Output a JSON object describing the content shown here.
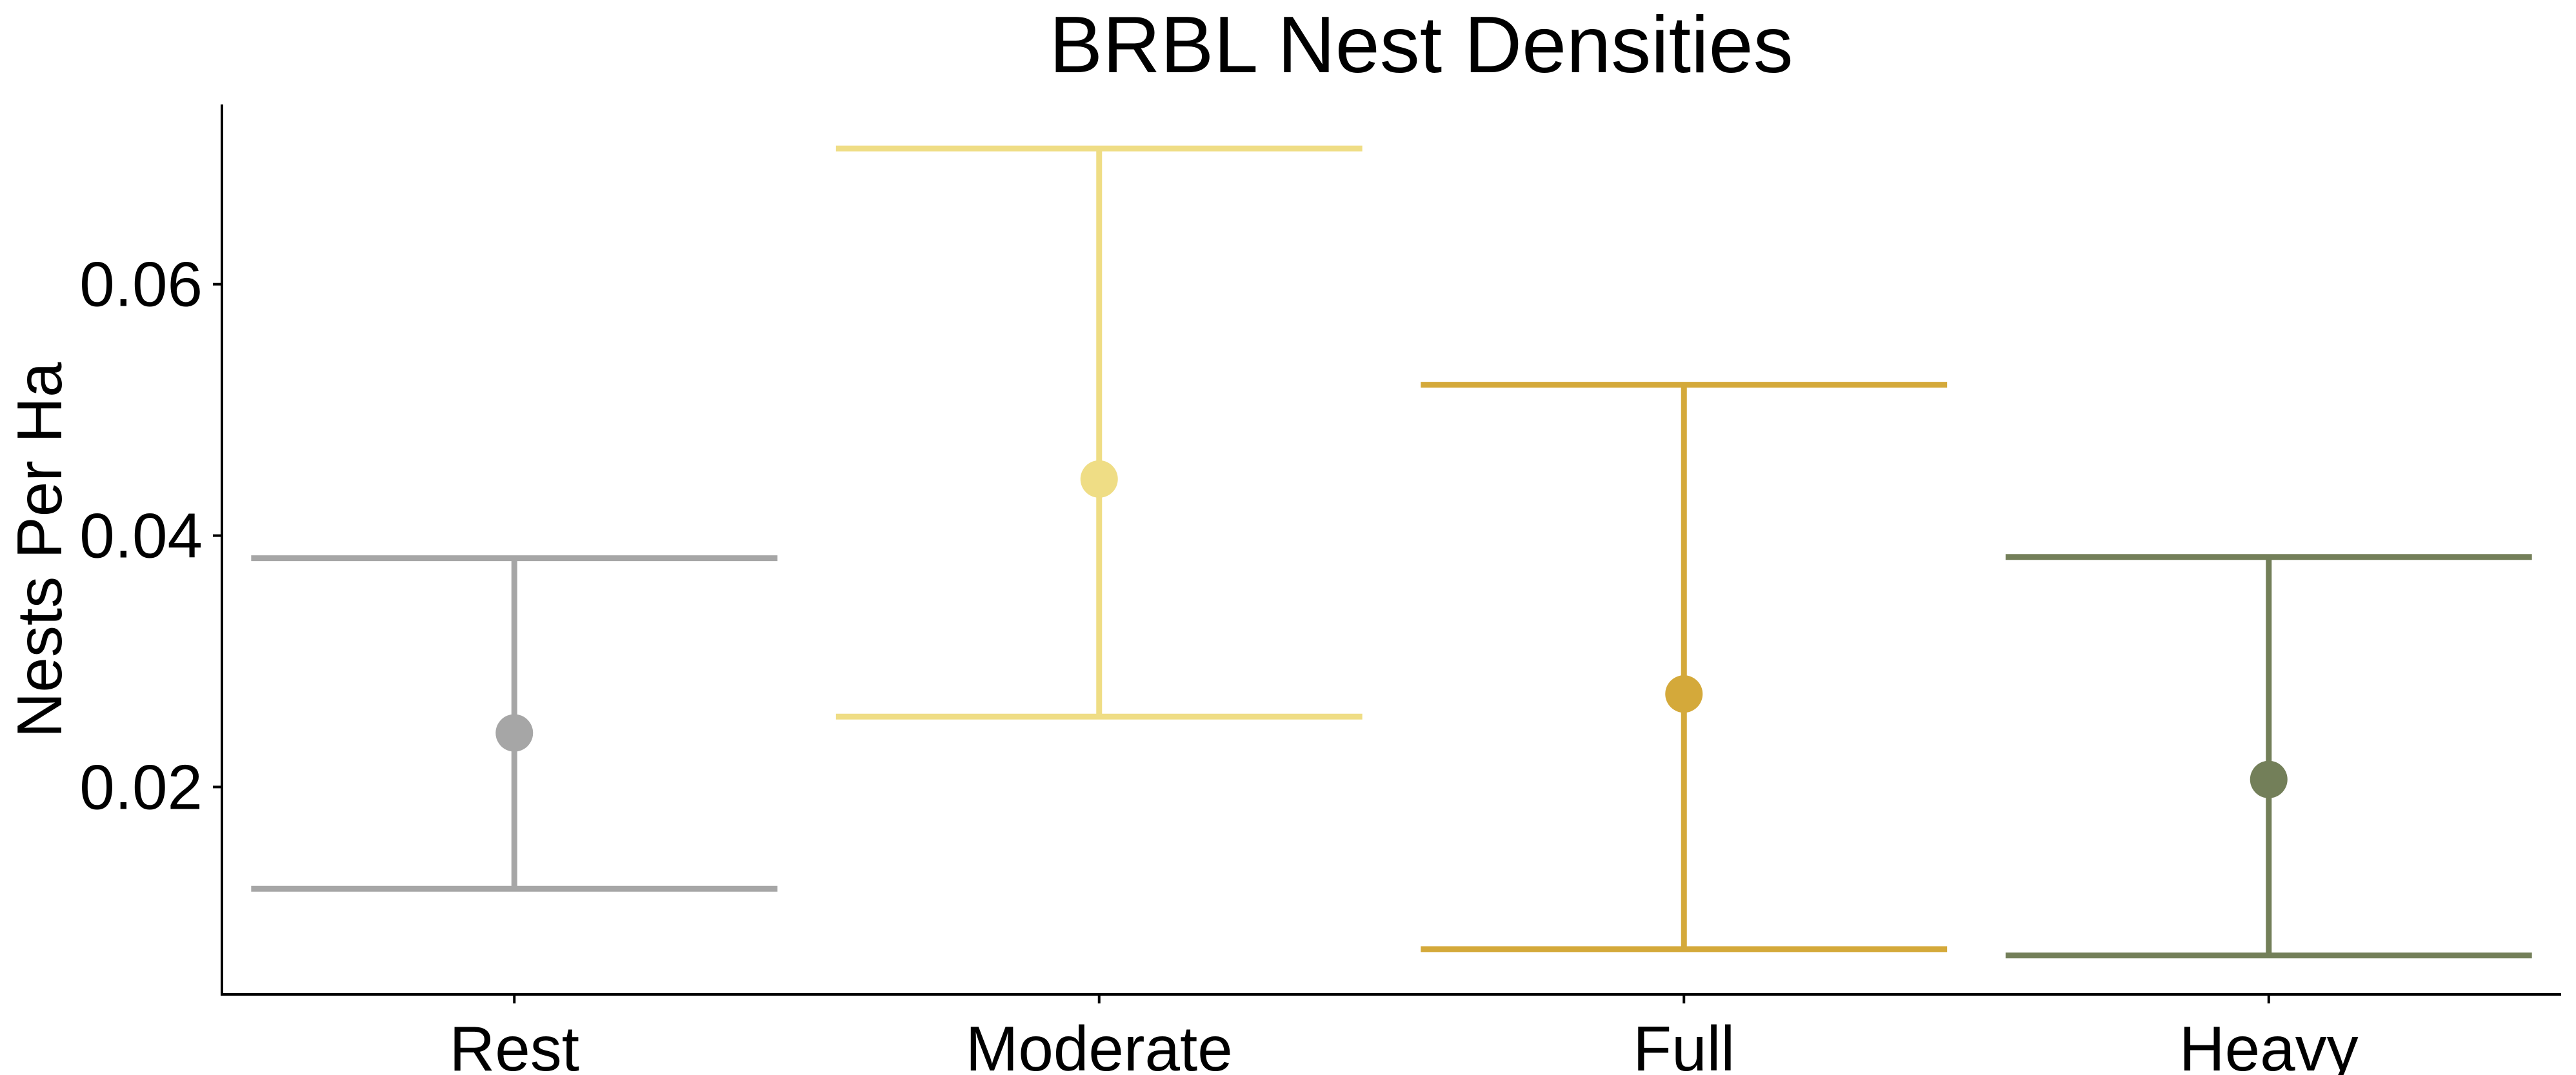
{
  "chart_data": {
    "type": "errorbar",
    "title": "BRBL Nest Densities",
    "xlabel": "",
    "ylabel": "Nests Per Ha",
    "ylim": [
      0.0035,
      0.0743
    ],
    "yticks": [
      0.02,
      0.04,
      0.06
    ],
    "ytick_labels": [
      "0.02",
      "0.04",
      "0.06"
    ],
    "grid": false,
    "legend": "none",
    "categories": [
      "Rest",
      "Moderate",
      "Full",
      "Heavy"
    ],
    "values": [
      0.0243,
      0.0445,
      0.0274,
      0.0206
    ],
    "lower": [
      0.0119,
      0.0256,
      0.0071,
      0.0066
    ],
    "upper": [
      0.0382,
      0.0708,
      0.052,
      0.0383
    ],
    "colors": [
      "#a6a6a6",
      "#efdd85",
      "#d4a93a",
      "#737f59"
    ]
  }
}
